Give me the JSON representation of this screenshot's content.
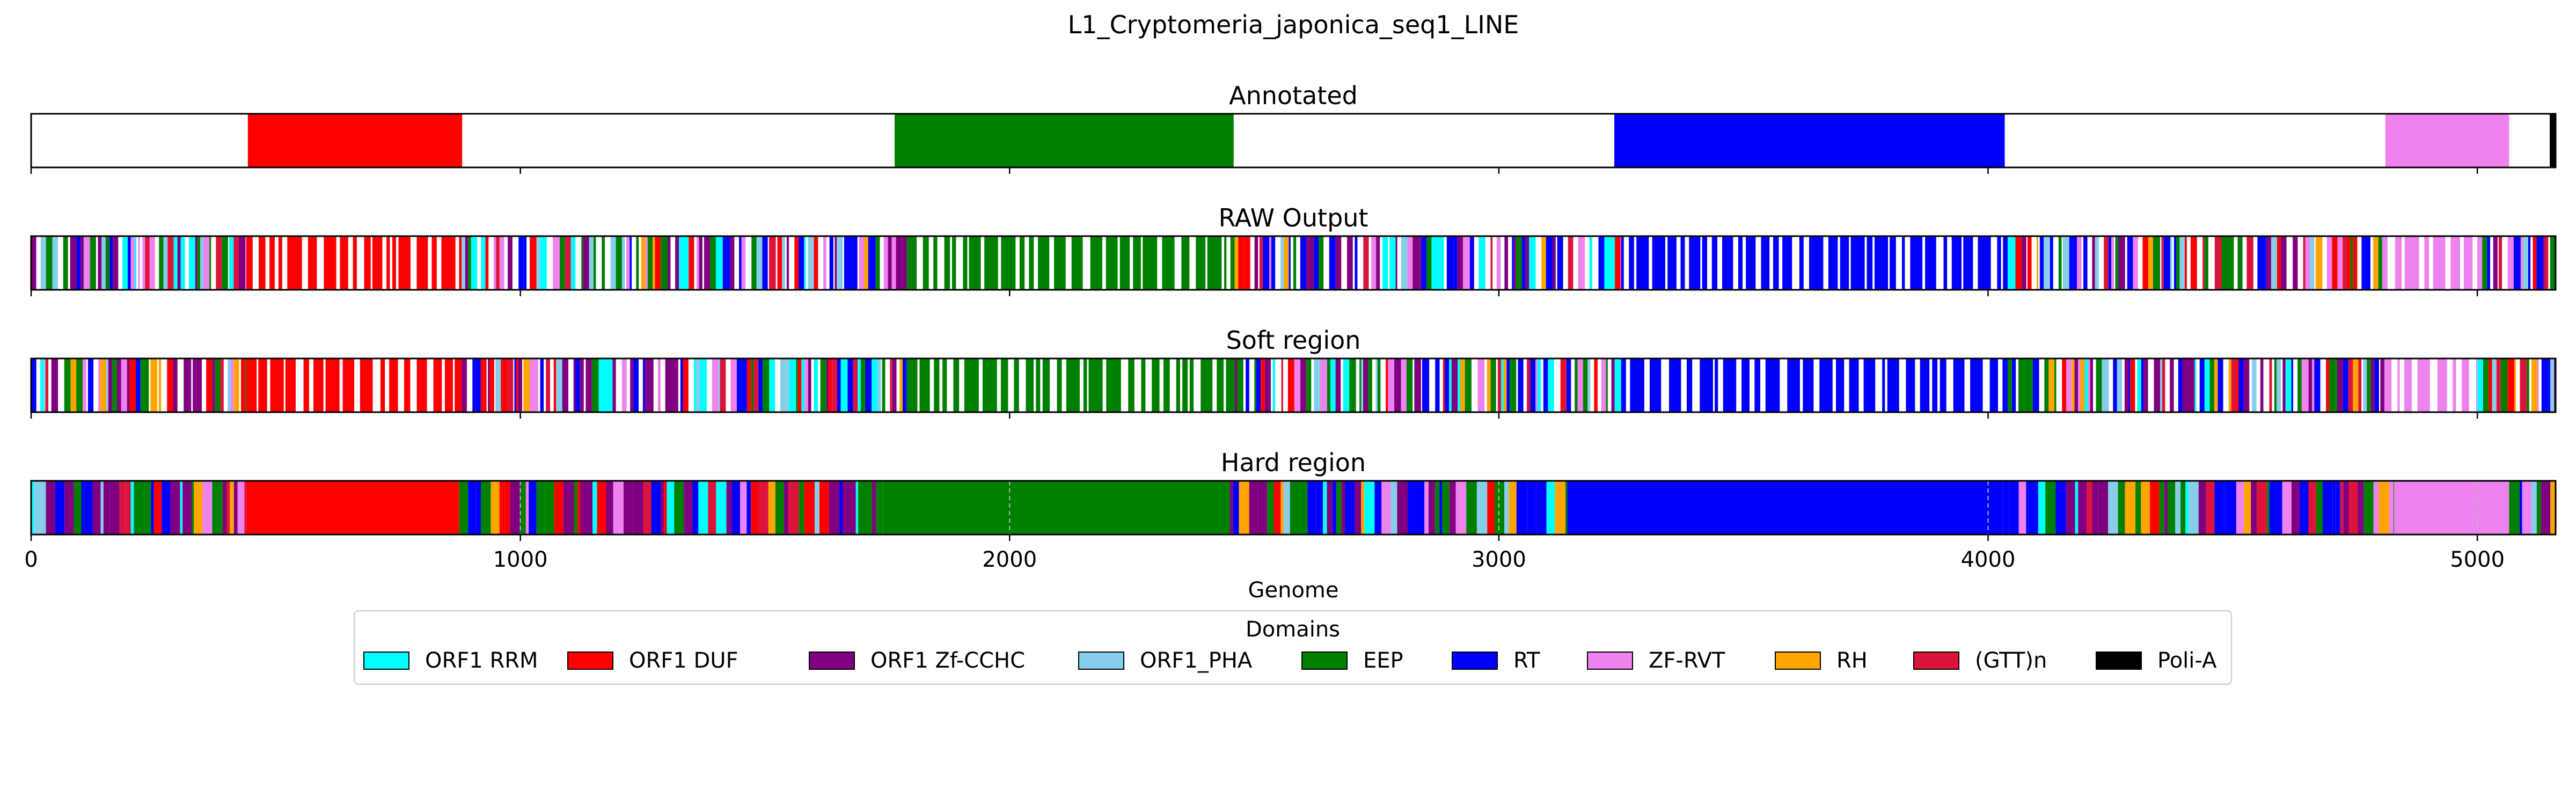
{
  "chart_data": {
    "type": "bar",
    "title": "L1_Cryptomeria_japonica_seq1_LINE",
    "xlabel": "Genome",
    "xlim": [
      0,
      5160
    ],
    "xticks": [
      0,
      1000,
      2000,
      3000,
      4000,
      5000
    ],
    "xtick_labels": [
      "0",
      "1000",
      "2000",
      "3000",
      "4000",
      "5000"
    ],
    "legend": {
      "title": "Domains",
      "placement": "bottom-center",
      "entries": [
        {
          "name": "ORF1 RRM",
          "color": "#00ffff"
        },
        {
          "name": "ORF1 DUF",
          "color": "#ff0000"
        },
        {
          "name": "ORF1 Zf-CCHC",
          "color": "#800080"
        },
        {
          "name": "ORF1_PHA",
          "color": "#87ceeb"
        },
        {
          "name": "EEP",
          "color": "#008000"
        },
        {
          "name": "RT",
          "color": "#0000ff"
        },
        {
          "name": "ZF-RVT",
          "color": "#ee82ee"
        },
        {
          "name": "RH",
          "color": "#ffa500"
        },
        {
          "name": "(GTT)n",
          "color": "#dc143c"
        },
        {
          "name": "Poli-A",
          "color": "#000000"
        }
      ]
    },
    "panels": [
      {
        "title": "Annotated",
        "segments": [
          {
            "domain": "ORF1 DUF",
            "start": 443,
            "end": 881
          },
          {
            "domain": "EEP",
            "start": 1765,
            "end": 2458
          },
          {
            "domain": "RT",
            "start": 3236,
            "end": 4034
          },
          {
            "domain": "ZF-RVT",
            "start": 4812,
            "end": 5065
          },
          {
            "domain": "Poli-A",
            "start": 5148,
            "end": 5160
          }
        ]
      },
      {
        "title": "RAW Output",
        "pattern": "sparse",
        "regions": [
          {
            "domain": "mixed",
            "start": 0,
            "end": 440
          },
          {
            "domain": "ORF1 DUF",
            "start": 440,
            "end": 880
          },
          {
            "domain": "mixed",
            "start": 880,
            "end": 1790
          },
          {
            "domain": "EEP",
            "start": 1790,
            "end": 2460
          },
          {
            "domain": "mixed",
            "start": 2460,
            "end": 3250
          },
          {
            "domain": "RT",
            "start": 3250,
            "end": 4040
          },
          {
            "domain": "mixed",
            "start": 4040,
            "end": 4810
          },
          {
            "domain": "ZF-RVT",
            "start": 4810,
            "end": 5000
          },
          {
            "domain": "mixed",
            "start": 5000,
            "end": 5160
          }
        ]
      },
      {
        "title": "Soft region",
        "pattern": "sparse",
        "regions": [
          {
            "domain": "mixed",
            "start": 0,
            "end": 440
          },
          {
            "domain": "ORF1 DUF",
            "start": 440,
            "end": 880
          },
          {
            "domain": "mixed",
            "start": 880,
            "end": 1790
          },
          {
            "domain": "EEP",
            "start": 1790,
            "end": 2460
          },
          {
            "domain": "mixed",
            "start": 2460,
            "end": 3250
          },
          {
            "domain": "RT",
            "start": 3250,
            "end": 4040
          },
          {
            "domain": "mixed",
            "start": 4040,
            "end": 4810
          },
          {
            "domain": "ZF-RVT",
            "start": 4810,
            "end": 5000
          },
          {
            "domain": "mixed",
            "start": 5000,
            "end": 5160
          }
        ]
      },
      {
        "title": "Hard region",
        "pattern": "dense",
        "regions": [
          {
            "domain": "mixed",
            "start": 0,
            "end": 440
          },
          {
            "domain": "ORF1 DUF",
            "start": 440,
            "end": 875
          },
          {
            "domain": "mixed",
            "start": 875,
            "end": 1740
          },
          {
            "domain": "EEP",
            "start": 1740,
            "end": 2450
          },
          {
            "domain": "mixed",
            "start": 2450,
            "end": 3140
          },
          {
            "domain": "RT",
            "start": 3140,
            "end": 4030
          },
          {
            "domain": "mixed",
            "start": 4030,
            "end": 4830
          },
          {
            "domain": "ZF-RVT",
            "start": 4830,
            "end": 5065
          },
          {
            "domain": "mixed",
            "start": 5065,
            "end": 5160
          }
        ]
      }
    ]
  }
}
